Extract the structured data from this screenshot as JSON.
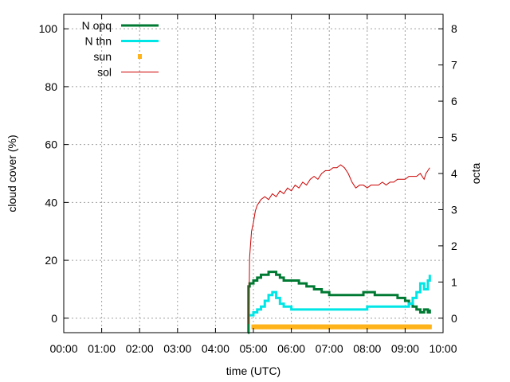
{
  "chart_data": {
    "type": "line",
    "title": "",
    "xlabel": "time (UTC)",
    "ylabel": "cloud cover (%)",
    "y2label": "octa",
    "xlim": [
      0,
      10
    ],
    "ylim": [
      -5,
      105
    ],
    "y2lim": [
      -0.4,
      8.4
    ],
    "grid": true,
    "legend_position": "top-left",
    "x_ticks": [
      {
        "v": 0,
        "label": "00:00"
      },
      {
        "v": 1,
        "label": "01:00"
      },
      {
        "v": 2,
        "label": "02:00"
      },
      {
        "v": 3,
        "label": "03:00"
      },
      {
        "v": 4,
        "label": "04:00"
      },
      {
        "v": 5,
        "label": "05:00"
      },
      {
        "v": 6,
        "label": "06:00"
      },
      {
        "v": 7,
        "label": "07:00"
      },
      {
        "v": 8,
        "label": "08:00"
      },
      {
        "v": 9,
        "label": "09:00"
      },
      {
        "v": 10,
        "label": "10:00"
      }
    ],
    "y_ticks": [
      {
        "v": 0,
        "label": "0"
      },
      {
        "v": 20,
        "label": "20"
      },
      {
        "v": 40,
        "label": "40"
      },
      {
        "v": 60,
        "label": "60"
      },
      {
        "v": 80,
        "label": "80"
      },
      {
        "v": 100,
        "label": "100"
      }
    ],
    "y2_ticks": [
      {
        "v": 0,
        "label": "0"
      },
      {
        "v": 1,
        "label": "1"
      },
      {
        "v": 2,
        "label": "2"
      },
      {
        "v": 3,
        "label": "3"
      },
      {
        "v": 4,
        "label": "4"
      },
      {
        "v": 5,
        "label": "5"
      },
      {
        "v": 6,
        "label": "6"
      },
      {
        "v": 7,
        "label": "7"
      },
      {
        "v": 8,
        "label": "8"
      }
    ],
    "series": [
      {
        "name": "N opq",
        "color": "#007a33",
        "style": "line",
        "x": [
          4.85,
          4.87,
          4.9,
          5.0,
          5.1,
          5.2,
          5.3,
          5.4,
          5.5,
          5.6,
          5.7,
          5.8,
          6.0,
          6.2,
          6.4,
          6.6,
          6.8,
          7.0,
          7.2,
          7.4,
          7.6,
          7.8,
          7.9,
          8.0,
          8.2,
          8.4,
          8.6,
          8.8,
          9.0,
          9.1,
          9.2,
          9.3,
          9.4,
          9.5,
          9.6,
          9.65
        ],
        "y": [
          -5,
          11,
          12,
          13,
          14,
          15,
          15,
          16,
          16,
          15,
          14,
          13,
          13,
          12,
          11,
          10,
          9,
          8,
          8,
          8,
          8,
          8,
          9,
          9,
          8,
          8,
          8,
          7,
          6,
          5,
          4,
          3,
          2,
          3,
          2,
          3
        ]
      },
      {
        "name": "N thn",
        "color": "#00e5e5",
        "style": "line",
        "x": [
          4.9,
          5.0,
          5.1,
          5.2,
          5.3,
          5.4,
          5.5,
          5.6,
          5.7,
          5.8,
          6.0,
          6.5,
          7.0,
          7.5,
          7.9,
          8.0,
          8.5,
          8.8,
          9.0,
          9.1,
          9.2,
          9.3,
          9.4,
          9.5,
          9.6,
          9.65
        ],
        "y": [
          1,
          2,
          3,
          4,
          6,
          8,
          9,
          7,
          5,
          4,
          3,
          3,
          3,
          3,
          3,
          4,
          4,
          4,
          4,
          5,
          7,
          9,
          12,
          10,
          13,
          15
        ]
      },
      {
        "name": "sun",
        "color": "#ffb31a",
        "style": "points",
        "x_range": [
          5.0,
          9.65
        ],
        "step": 0.05,
        "y": -3
      },
      {
        "name": "sol",
        "color": "#cc0000",
        "style": "thin-line",
        "x": [
          4.88,
          4.9,
          4.95,
          5.0,
          5.05,
          5.1,
          5.2,
          5.3,
          5.4,
          5.5,
          5.6,
          5.7,
          5.8,
          5.9,
          6.0,
          6.1,
          6.2,
          6.3,
          6.4,
          6.5,
          6.6,
          6.7,
          6.8,
          6.9,
          7.0,
          7.1,
          7.2,
          7.3,
          7.4,
          7.5,
          7.6,
          7.7,
          7.8,
          7.9,
          8.0,
          8.1,
          8.2,
          8.3,
          8.4,
          8.5,
          8.6,
          8.7,
          8.8,
          8.9,
          9.0,
          9.1,
          9.2,
          9.3,
          9.4,
          9.5,
          9.55,
          9.6,
          9.65
        ],
        "y": [
          -2,
          21,
          30,
          33,
          37,
          39,
          41,
          42,
          41,
          43,
          42,
          44,
          43,
          45,
          44,
          46,
          45,
          47,
          46,
          48,
          49,
          48,
          50,
          51,
          51,
          52,
          52,
          53,
          52,
          50,
          47,
          45,
          46,
          46,
          45,
          46,
          46,
          46,
          47,
          46,
          47,
          47,
          48,
          48,
          48,
          49,
          49,
          49,
          50,
          48,
          50,
          51,
          52
        ]
      }
    ]
  }
}
